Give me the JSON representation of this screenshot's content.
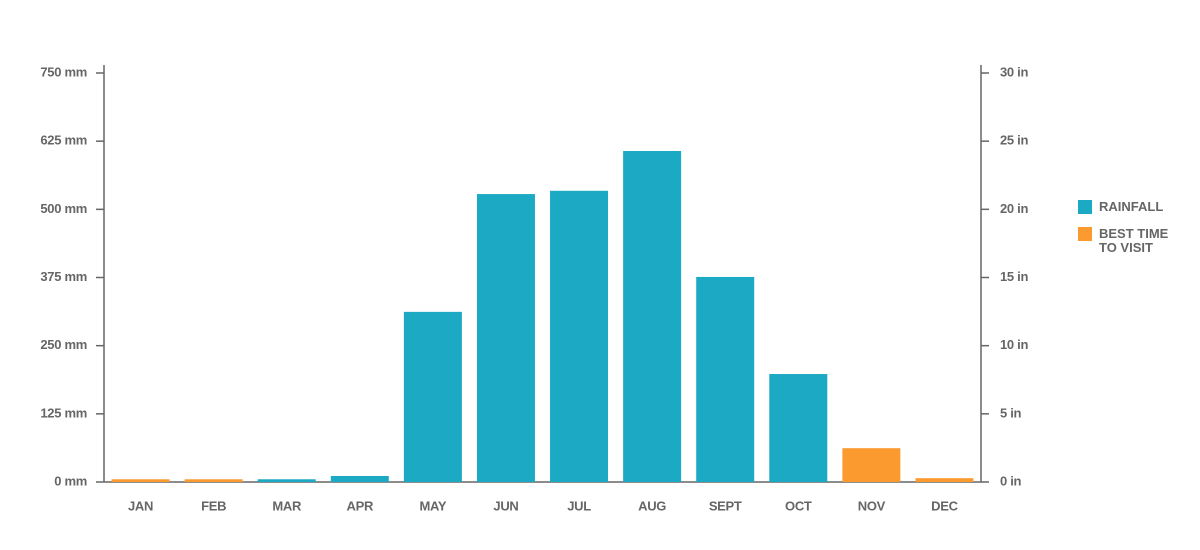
{
  "chart_data": {
    "type": "bar",
    "categories": [
      "JAN",
      "FEB",
      "MAR",
      "APR",
      "MAY",
      "JUN",
      "JUL",
      "AUG",
      "SEPT",
      "OCT",
      "NOV",
      "DEC"
    ],
    "series": [
      {
        "name": "RAINFALL",
        "color": "#1ba9c3",
        "values": [
          null,
          null,
          5,
          11,
          312,
          528,
          534,
          607,
          376,
          198,
          null,
          null
        ]
      },
      {
        "name": "BEST TIME TO VISIT",
        "color": "#fa9a2f",
        "values": [
          5,
          5,
          null,
          null,
          null,
          null,
          null,
          null,
          null,
          null,
          62,
          7
        ]
      }
    ],
    "ylim": [
      0,
      750
    ],
    "yticks": [
      {
        "value": 0,
        "label": "0 mm"
      },
      {
        "value": 125,
        "label": "125 mm"
      },
      {
        "value": 250,
        "label": "250 mm"
      },
      {
        "value": 375,
        "label": "375 mm"
      },
      {
        "value": 500,
        "label": "500 mm"
      },
      {
        "value": 625,
        "label": "625 mm"
      },
      {
        "value": 750,
        "label": "750 mm"
      }
    ],
    "y2lim": [
      0,
      30
    ],
    "y2ticks": [
      {
        "value": 0,
        "label": "0 in"
      },
      {
        "value": 5,
        "label": "5 in"
      },
      {
        "value": 10,
        "label": "10 in"
      },
      {
        "value": 15,
        "label": "15 in"
      },
      {
        "value": 20,
        "label": "20 in"
      },
      {
        "value": 25,
        "label": "25 in"
      },
      {
        "value": 30,
        "label": "30 in"
      }
    ],
    "grid": false,
    "legend": "right"
  }
}
